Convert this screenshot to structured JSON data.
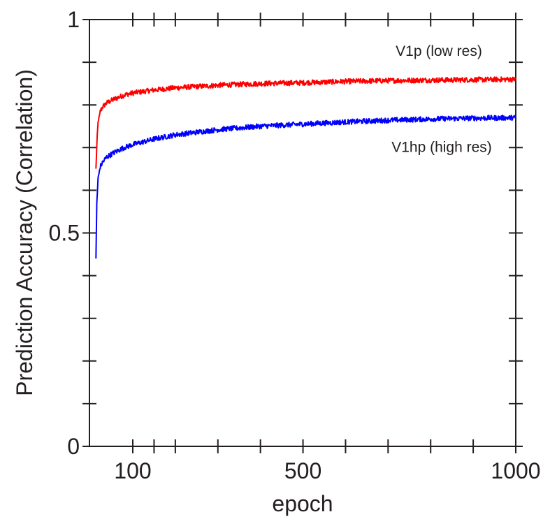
{
  "chart_data": {
    "type": "line",
    "xlabel": "epoch",
    "ylabel": "Prediction Accuracy (Correlation)",
    "xlim": [
      0,
      1000
    ],
    "ylim": [
      0,
      1
    ],
    "x_ticks": [
      100,
      150,
      200,
      300,
      400,
      500,
      600,
      700,
      800,
      900,
      1000
    ],
    "x_tick_labels": [
      {
        "value": 100,
        "label": "100"
      },
      {
        "value": 500,
        "label": "500"
      },
      {
        "value": 1000,
        "label": "1000"
      }
    ],
    "y_ticks": [
      0,
      0.1,
      0.2,
      0.3,
      0.4,
      0.5,
      0.6,
      0.7,
      0.8,
      0.9,
      1
    ],
    "y_tick_labels": [
      {
        "value": 0,
        "label": "0"
      },
      {
        "value": 0.5,
        "label": "0.5"
      },
      {
        "value": 1,
        "label": "1"
      }
    ],
    "grid": false,
    "series": [
      {
        "name": "V1p (low res)",
        "color": "#ff0000",
        "x": [
          15,
          18,
          20,
          25,
          30,
          40,
          60,
          80,
          100,
          150,
          200,
          300,
          400,
          500,
          600,
          700,
          800,
          900,
          1000
        ],
        "values": [
          0.65,
          0.73,
          0.76,
          0.785,
          0.795,
          0.805,
          0.815,
          0.823,
          0.828,
          0.835,
          0.84,
          0.846,
          0.85,
          0.852,
          0.855,
          0.857,
          0.858,
          0.859,
          0.86
        ]
      },
      {
        "name": "V1hp (high res)",
        "color": "#0000ff",
        "x": [
          15,
          17,
          20,
          25,
          30,
          40,
          60,
          80,
          100,
          150,
          200,
          300,
          400,
          500,
          600,
          700,
          800,
          900,
          1000
        ],
        "values": [
          0.44,
          0.57,
          0.63,
          0.655,
          0.665,
          0.678,
          0.69,
          0.7,
          0.707,
          0.72,
          0.73,
          0.742,
          0.75,
          0.755,
          0.76,
          0.764,
          0.767,
          0.769,
          0.77
        ]
      }
    ]
  }
}
